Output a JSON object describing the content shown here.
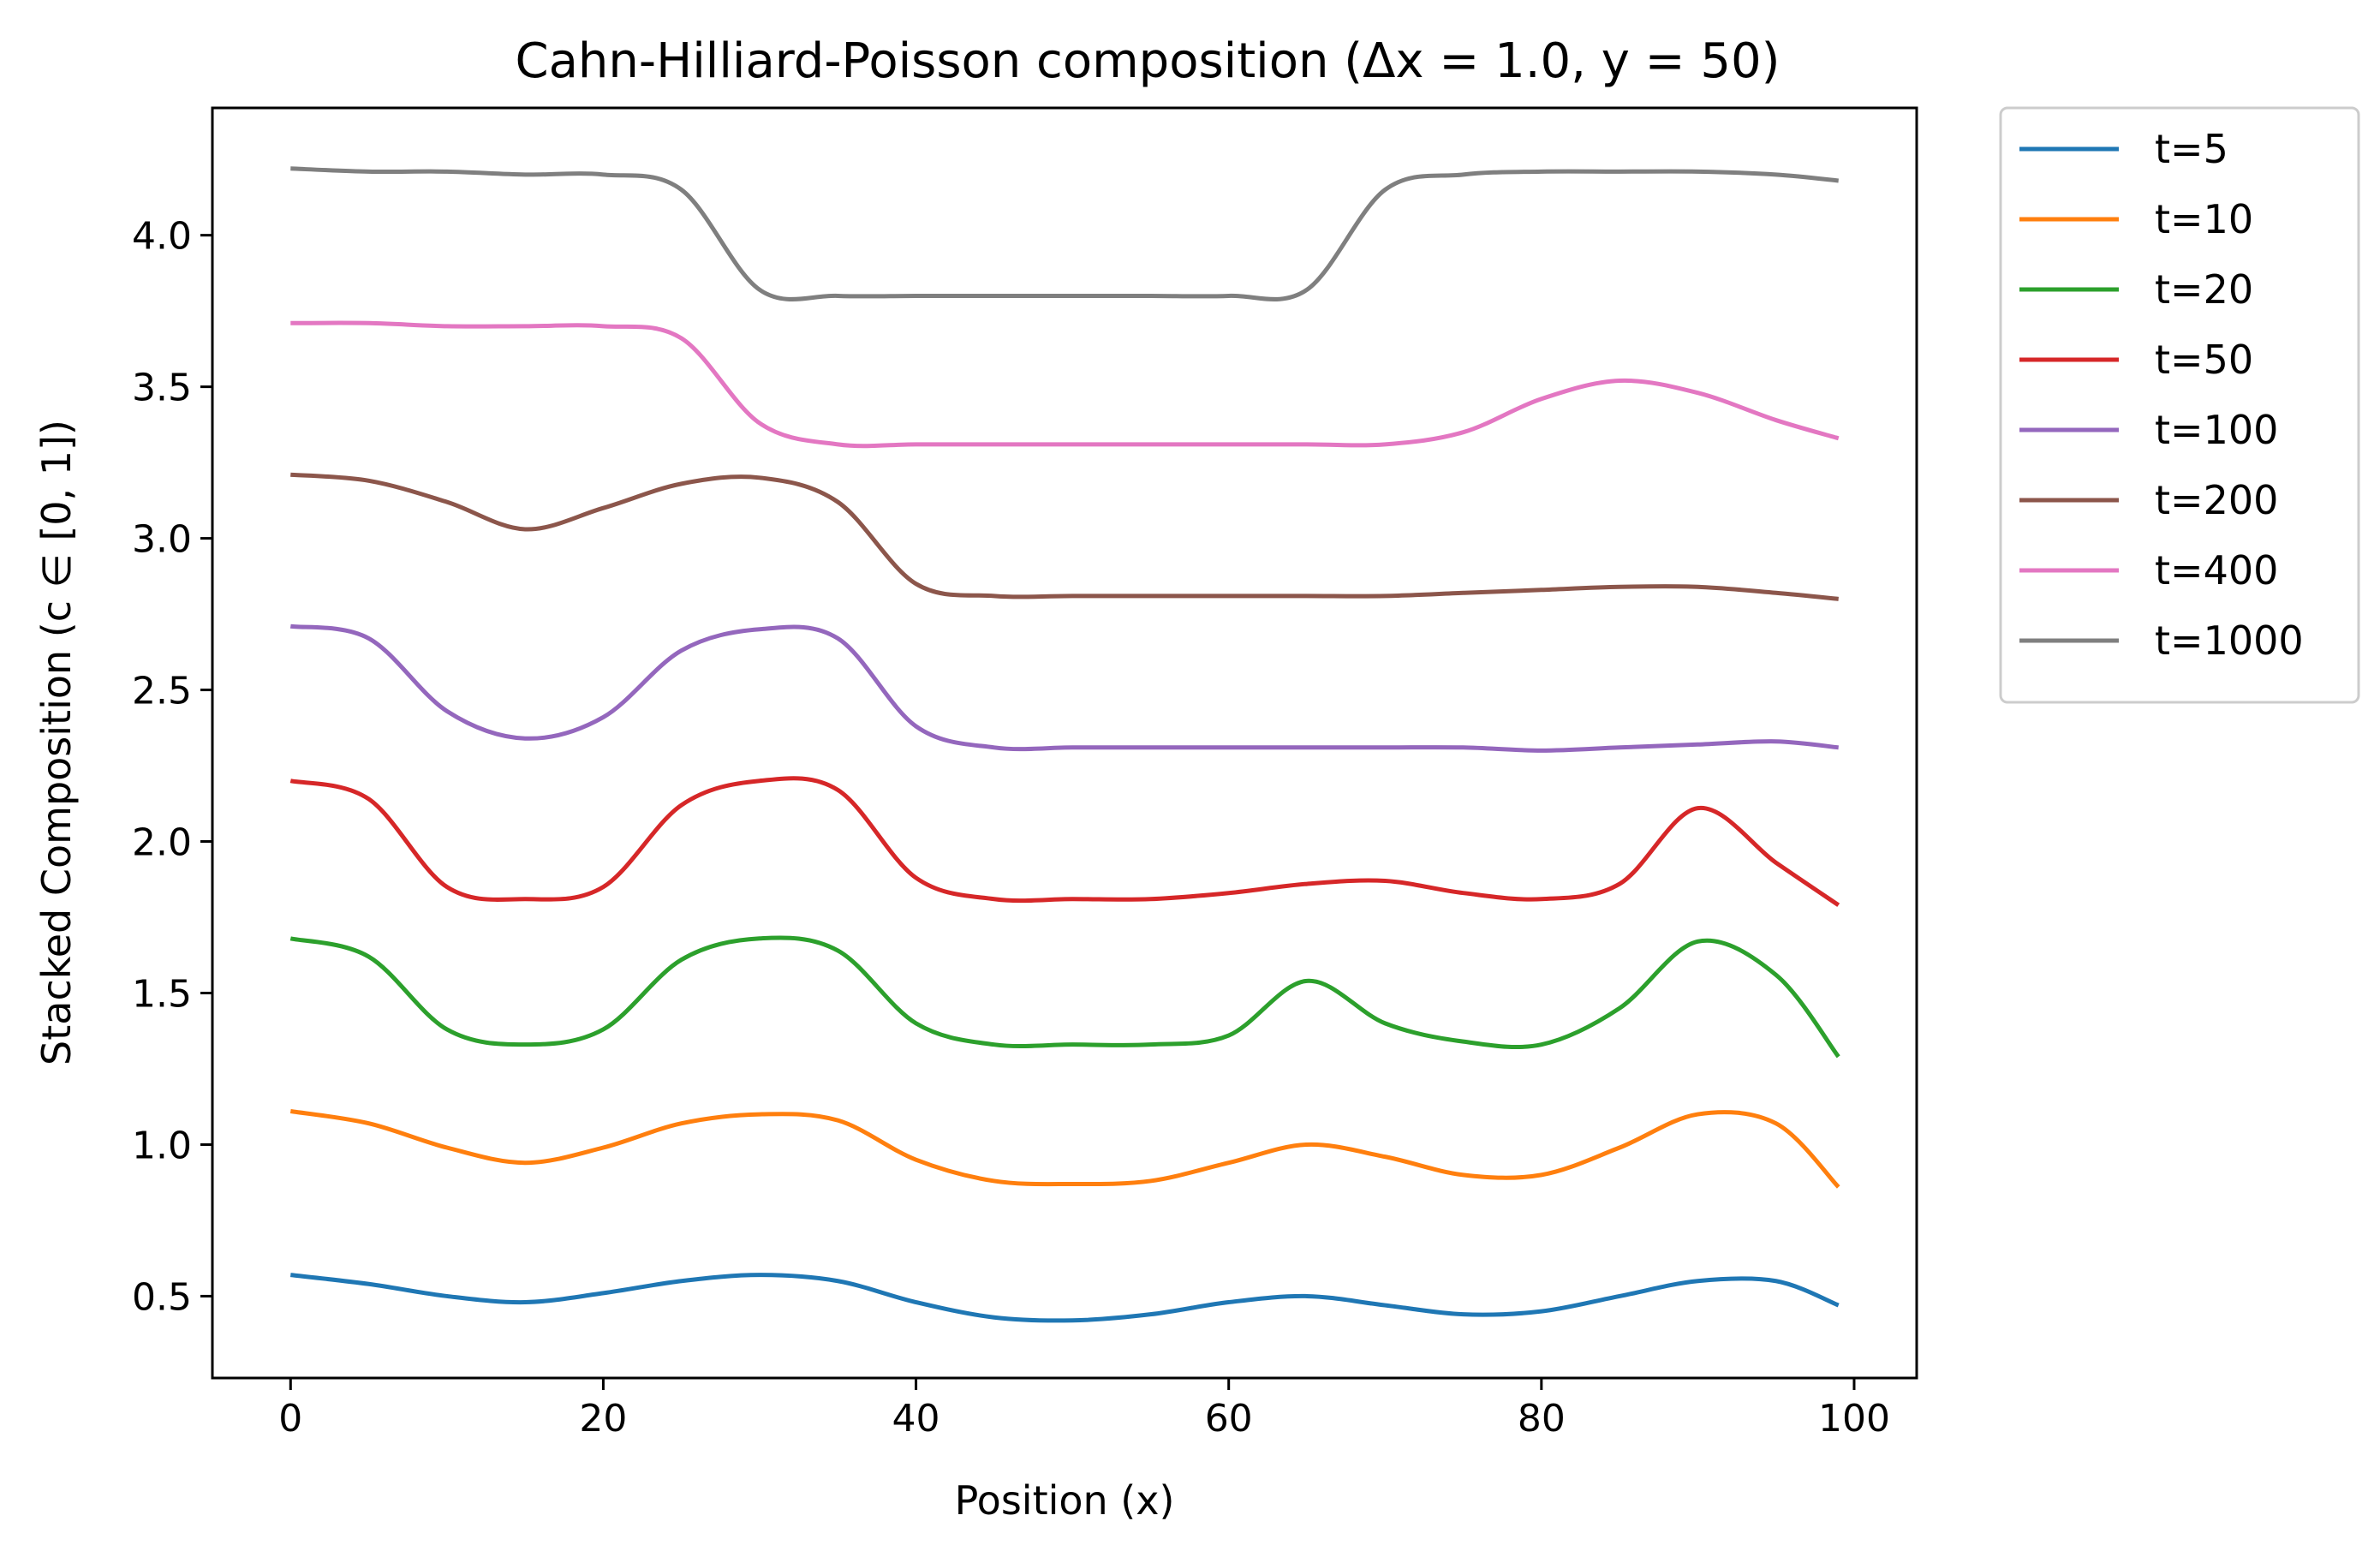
{
  "chart_data": {
    "type": "line",
    "title": "Cahn-Hilliard-Poisson composition (Δx = 1.0, y = 50)",
    "xlabel": "Position (x)",
    "ylabel": "Stacked Composition (c ∈ [0, 1])",
    "xlim": [
      -5,
      104
    ],
    "ylim": [
      0.23,
      4.42
    ],
    "xticks": [
      0,
      20,
      40,
      60,
      80,
      100
    ],
    "xtick_labels": [
      "0",
      "20",
      "40",
      "60",
      "80",
      "100"
    ],
    "yticks": [
      0.5,
      1.0,
      1.5,
      2.0,
      2.5,
      3.0,
      3.5,
      4.0
    ],
    "ytick_labels": [
      "0.5",
      "1.0",
      "1.5",
      "2.0",
      "2.5",
      "3.0",
      "3.5",
      "4.0"
    ],
    "grid": false,
    "legend_position": "outside-right-top",
    "x": [
      0,
      5,
      10,
      15,
      20,
      25,
      30,
      35,
      40,
      45,
      50,
      55,
      60,
      65,
      70,
      75,
      80,
      85,
      90,
      95,
      99
    ],
    "series": [
      {
        "name": "t=5",
        "color": "#1f77b4",
        "values": [
          0.57,
          0.54,
          0.5,
          0.48,
          0.51,
          0.55,
          0.57,
          0.55,
          0.48,
          0.43,
          0.42,
          0.44,
          0.48,
          0.5,
          0.47,
          0.44,
          0.45,
          0.5,
          0.55,
          0.55,
          0.47
        ]
      },
      {
        "name": "t=10",
        "color": "#ff7f0e",
        "values": [
          1.11,
          1.07,
          0.99,
          0.94,
          0.99,
          1.07,
          1.1,
          1.08,
          0.95,
          0.88,
          0.87,
          0.88,
          0.94,
          1.0,
          0.96,
          0.9,
          0.9,
          0.99,
          1.1,
          1.07,
          0.86
        ]
      },
      {
        "name": "t=20",
        "color": "#2ca02c",
        "values": [
          1.68,
          1.62,
          1.38,
          1.33,
          1.38,
          1.61,
          1.68,
          1.64,
          1.4,
          1.33,
          1.33,
          1.33,
          1.36,
          1.54,
          1.4,
          1.34,
          1.33,
          1.45,
          1.67,
          1.56,
          1.29
        ]
      },
      {
        "name": "t=50",
        "color": "#d62728",
        "values": [
          2.2,
          2.14,
          1.85,
          1.81,
          1.85,
          2.12,
          2.2,
          2.17,
          1.88,
          1.81,
          1.81,
          1.81,
          1.83,
          1.86,
          1.87,
          1.83,
          1.81,
          1.86,
          2.11,
          1.93,
          1.79
        ]
      },
      {
        "name": "t=100",
        "color": "#9467bd",
        "values": [
          2.71,
          2.67,
          2.43,
          2.34,
          2.41,
          2.63,
          2.7,
          2.67,
          2.38,
          2.31,
          2.31,
          2.31,
          2.31,
          2.31,
          2.31,
          2.31,
          2.3,
          2.31,
          2.32,
          2.33,
          2.31
        ]
      },
      {
        "name": "t=200",
        "color": "#8c564b",
        "values": [
          3.21,
          3.19,
          3.12,
          3.03,
          3.1,
          3.18,
          3.2,
          3.12,
          2.85,
          2.81,
          2.81,
          2.81,
          2.81,
          2.81,
          2.81,
          2.82,
          2.83,
          2.84,
          2.84,
          2.82,
          2.8
        ]
      },
      {
        "name": "t=400",
        "color": "#e377c2",
        "values": [
          3.71,
          3.71,
          3.7,
          3.7,
          3.7,
          3.66,
          3.38,
          3.31,
          3.31,
          3.31,
          3.31,
          3.31,
          3.31,
          3.31,
          3.31,
          3.35,
          3.46,
          3.52,
          3.48,
          3.39,
          3.33
        ]
      },
      {
        "name": "t=1000",
        "color": "#7f7f7f",
        "values": [
          4.22,
          4.21,
          4.21,
          4.2,
          4.2,
          4.15,
          3.82,
          3.8,
          3.8,
          3.8,
          3.8,
          3.8,
          3.8,
          3.82,
          4.15,
          4.2,
          4.21,
          4.21,
          4.21,
          4.2,
          4.18
        ]
      }
    ]
  }
}
